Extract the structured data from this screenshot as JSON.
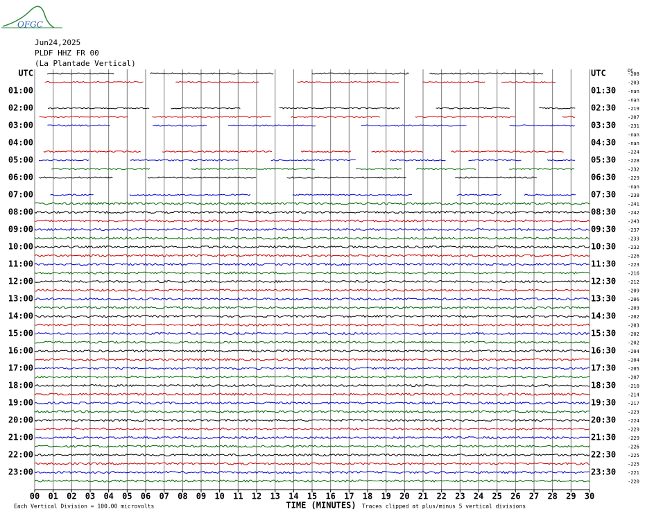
{
  "logo": "OFGC",
  "header": {
    "date": "Jun24,2025",
    "station": "PLDF HHZ FR 00",
    "location": "(La Plantade Vertical)"
  },
  "left_labels": [
    "UTC",
    "01:00",
    "02:00",
    "03:00",
    "04:00",
    "05:00",
    "06:00",
    "07:00",
    "08:00",
    "09:00",
    "10:00",
    "11:00",
    "12:00",
    "13:00",
    "14:00",
    "15:00",
    "16:00",
    "17:00",
    "18:00",
    "19:00",
    "20:00",
    "21:00",
    "22:00",
    "23:00"
  ],
  "right_labels": [
    "UTC",
    "01:30",
    "02:30",
    "03:30",
    "04:30",
    "05:30",
    "06:30",
    "07:30",
    "08:30",
    "09:30",
    "10:30",
    "11:30",
    "12:30",
    "13:30",
    "14:30",
    "15:30",
    "16:30",
    "17:30",
    "18:30",
    "19:30",
    "20:30",
    "21:30",
    "22:30",
    "23:30"
  ],
  "dc_header": "DC",
  "dc_values": [
    "-208",
    "-203",
    "-nan",
    "-nan",
    "-219",
    "-207",
    "-231",
    "-nan",
    "-nan",
    "-224",
    "-228",
    "-232",
    "-229",
    "-nan",
    "-238",
    "-241",
    "-242",
    "-243",
    "-237",
    "-233",
    "-232",
    "-226",
    "-223",
    "-216",
    "-212",
    "-209",
    "-206",
    "-203",
    "-202",
    "-203",
    "-202",
    "-202",
    "-204",
    "-204",
    "-205",
    "-207",
    "-210",
    "-214",
    "-217",
    "-223",
    "-224",
    "-229",
    "-229",
    "-226",
    "-225",
    "-225",
    "-221",
    "-220"
  ],
  "x_labels": [
    "00",
    "01",
    "02",
    "03",
    "04",
    "05",
    "06",
    "07",
    "08",
    "09",
    "10",
    "11",
    "12",
    "13",
    "14",
    "15",
    "16",
    "17",
    "18",
    "19",
    "20",
    "21",
    "22",
    "23",
    "24",
    "25",
    "26",
    "27",
    "28",
    "29",
    "30"
  ],
  "x_title": "TIME (MINUTES)",
  "footer": {
    "scale": "Each Vertical Division =  100.00 microvolts",
    "clip": "Traces clipped at plus/minus 5 vertical divisions"
  }
}
